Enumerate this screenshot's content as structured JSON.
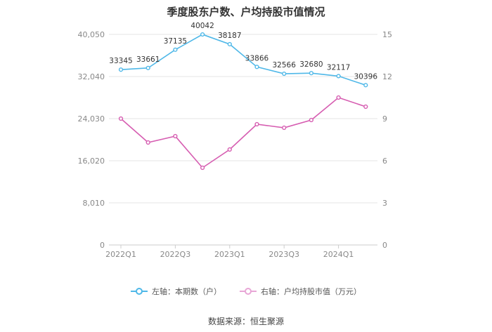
{
  "chart_data": {
    "type": "line",
    "title": "季度股东户数、户均持股市值情况",
    "source": "数据来源：恒生聚源",
    "categories": [
      "2022Q1",
      "2022Q2",
      "2022Q3",
      "2022Q4",
      "2023Q1",
      "2023Q2",
      "2023Q3",
      "2023Q4",
      "2024Q1",
      "2024Q2"
    ],
    "x_tick_labels": [
      "2022Q1",
      "2022Q3",
      "2023Q1",
      "2023Q3",
      "2024Q1"
    ],
    "left_axis": {
      "ticks": [
        "0",
        "8,010",
        "16,020",
        "24,030",
        "32,040",
        "40,050"
      ],
      "ylim": [
        0,
        40050
      ]
    },
    "right_axis": {
      "ticks": [
        "0",
        "3",
        "6",
        "9",
        "12",
        "15"
      ],
      "ylim": [
        0,
        15
      ]
    },
    "grid": true,
    "legend_position": "bottom",
    "series": [
      {
        "name": "左轴：本期数（户）",
        "axis": "left",
        "color": "#4fb8e8",
        "values": [
          33345,
          33661,
          37135,
          40042,
          38187,
          33866,
          32566,
          32680,
          32117,
          30396
        ],
        "labels": [
          "33345",
          "33661",
          "37135",
          "40042",
          "38187",
          "33866",
          "32566",
          "32680",
          "32117",
          "30396"
        ]
      },
      {
        "name": "右轴：户均持股市值（万元）",
        "axis": "right",
        "color": "#d65db1",
        "values": [
          9.0,
          7.3,
          7.75,
          5.5,
          6.8,
          8.6,
          8.35,
          8.9,
          10.5,
          9.85
        ]
      }
    ]
  }
}
